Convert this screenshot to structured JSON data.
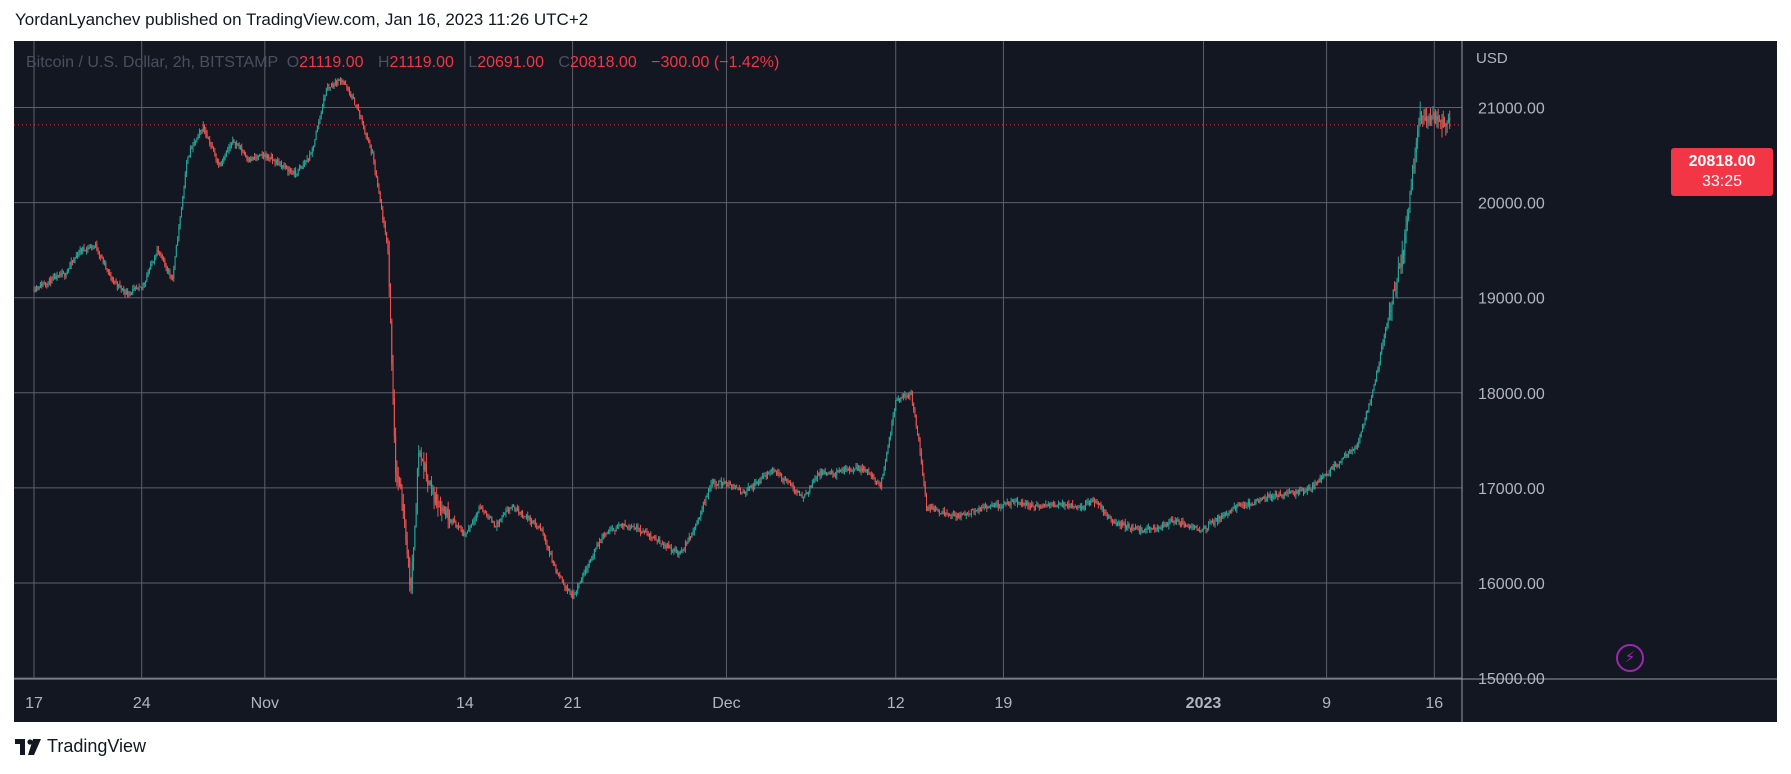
{
  "header": {
    "publish_text": "YordanLyanchev published on TradingView.com, Jan 16, 2023 11:26 UTC+2"
  },
  "legend": {
    "symbol": "Bitcoin / U.S. Dollar, 2h, BITSTAMP",
    "open_key": "O",
    "open": "21119.00",
    "high_key": "H",
    "high": "21119.00",
    "low_key": "L",
    "low": "20691.00",
    "close_key": "C",
    "close": "20818.00",
    "change": "−300.00 (−1.42%)"
  },
  "last_price": {
    "value": "20818.00",
    "countdown": "33:25"
  },
  "footer": {
    "brand": "TradingView"
  },
  "colors": {
    "background": "#131722",
    "grid": "#5d606b",
    "up": "#26a69a",
    "down": "#ef5350",
    "price_line": "#f23645",
    "axis_text": "#b2b5be"
  },
  "chart_data": {
    "type": "candlestick",
    "title": "",
    "symbol": "Bitcoin / U.S. Dollar",
    "interval": "2h",
    "exchange": "BITSTAMP",
    "currency_label": "USD",
    "y_axis": {
      "labels": [
        "21000.00",
        "20000.00",
        "19000.00",
        "18000.00",
        "17000.00",
        "16000.00",
        "15000.00"
      ],
      "values": [
        21000,
        20000,
        19000,
        18000,
        17000,
        16000,
        15000
      ],
      "visible_range": [
        14990,
        21700
      ]
    },
    "x_axis": {
      "labels": [
        "17",
        "24",
        "Nov",
        "14",
        "21",
        "Dec",
        "12",
        "19",
        "2023",
        "9",
        "16"
      ],
      "bold_labels": [
        "2023"
      ],
      "label_day_index": [
        0,
        7,
        15,
        28,
        35,
        45,
        56,
        63,
        76,
        84,
        91
      ],
      "range_days": [
        -1.3,
        92.8
      ]
    },
    "grid": true,
    "last_price_line": 20818,
    "price_path_daily": [
      [
        0,
        19100
      ],
      [
        2,
        19250
      ],
      [
        3,
        19500
      ],
      [
        4,
        19550
      ],
      [
        5,
        19200
      ],
      [
        6,
        19050
      ],
      [
        7,
        19100
      ],
      [
        8,
        19500
      ],
      [
        9,
        19200
      ],
      [
        10,
        20500
      ],
      [
        11,
        20800
      ],
      [
        12,
        20400
      ],
      [
        13,
        20650
      ],
      [
        14,
        20450
      ],
      [
        15,
        20500
      ],
      [
        16,
        20400
      ],
      [
        17,
        20300
      ],
      [
        18,
        20500
      ],
      [
        19,
        21200
      ],
      [
        20,
        21300
      ],
      [
        21,
        21000
      ],
      [
        22,
        20500
      ],
      [
        23,
        19500
      ],
      [
        23.5,
        17200
      ],
      [
        24,
        16800
      ],
      [
        24.5,
        15900
      ],
      [
        25,
        17400
      ],
      [
        26,
        16900
      ],
      [
        27,
        16700
      ],
      [
        28,
        16500
      ],
      [
        29,
        16800
      ],
      [
        30,
        16600
      ],
      [
        31,
        16800
      ],
      [
        32,
        16700
      ],
      [
        33,
        16550
      ],
      [
        34,
        16100
      ],
      [
        35,
        15850
      ],
      [
        36,
        16200
      ],
      [
        37,
        16500
      ],
      [
        38,
        16600
      ],
      [
        39,
        16600
      ],
      [
        40,
        16500
      ],
      [
        41,
        16400
      ],
      [
        42,
        16300
      ],
      [
        43,
        16600
      ],
      [
        44,
        17050
      ],
      [
        45,
        17050
      ],
      [
        46,
        16950
      ],
      [
        47,
        17050
      ],
      [
        48,
        17200
      ],
      [
        49,
        17050
      ],
      [
        50,
        16900
      ],
      [
        51,
        17150
      ],
      [
        52,
        17150
      ],
      [
        53,
        17200
      ],
      [
        54,
        17200
      ],
      [
        55,
        17000
      ],
      [
        56,
        17900
      ],
      [
        57,
        18000
      ],
      [
        57.5,
        17500
      ],
      [
        58,
        16800
      ],
      [
        59,
        16750
      ],
      [
        60,
        16700
      ],
      [
        61,
        16750
      ],
      [
        62,
        16800
      ],
      [
        63,
        16820
      ],
      [
        64,
        16850
      ],
      [
        65,
        16800
      ],
      [
        66,
        16820
      ],
      [
        67,
        16830
      ],
      [
        68,
        16800
      ],
      [
        69,
        16870
      ],
      [
        70,
        16650
      ],
      [
        71,
        16600
      ],
      [
        72,
        16550
      ],
      [
        73,
        16580
      ],
      [
        74,
        16650
      ],
      [
        75,
        16600
      ],
      [
        76,
        16570
      ],
      [
        77,
        16680
      ],
      [
        78,
        16800
      ],
      [
        79,
        16830
      ],
      [
        80,
        16900
      ],
      [
        81,
        16930
      ],
      [
        82,
        16950
      ],
      [
        83,
        17000
      ],
      [
        84,
        17150
      ],
      [
        85,
        17300
      ],
      [
        86,
        17450
      ],
      [
        87,
        18000
      ],
      [
        88,
        18800
      ],
      [
        89,
        19500
      ],
      [
        90,
        20900
      ],
      [
        91,
        20900
      ],
      [
        92,
        20818
      ]
    ]
  }
}
